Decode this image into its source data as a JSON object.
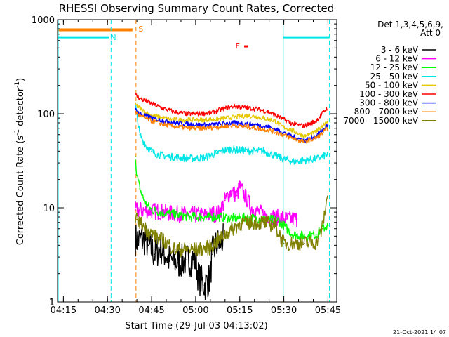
{
  "chart_data": {
    "type": "line",
    "title": "RHESSI Observing Summary Count Rates, Corrected",
    "xlabel": "Start Time (29-Jul-03 04:13:02)",
    "ylabel_main": "Corrected Count Rate (s",
    "ylabel_exp1": "-1",
    "ylabel_mid": " detector",
    "ylabel_exp2": "-1",
    "ylabel_end": ")",
    "y_scale": "log",
    "ylim": [
      1,
      1000
    ],
    "xlim_min": [
      0,
      95
    ],
    "x_ticks": [
      {
        "label": "04:15",
        "min": 2
      },
      {
        "label": "04:30",
        "min": 17
      },
      {
        "label": "04:45",
        "min": 32
      },
      {
        "label": "05:00",
        "min": 47
      },
      {
        "label": "05:15",
        "min": 62
      },
      {
        "label": "05:30",
        "min": 77
      },
      {
        "label": "05:45",
        "min": 92
      }
    ],
    "y_ticks": [
      {
        "label": "1",
        "value": 1
      },
      {
        "label": "10",
        "value": 10
      },
      {
        "label": "100",
        "value": 100
      },
      {
        "label": "1000",
        "value": 1000
      }
    ],
    "legend": {
      "header1": "Det 1,3,4,5,6,9,",
      "header2": "Att 0",
      "placement": "right"
    },
    "annotations": [
      {
        "label": "N",
        "color": "#00e5e5",
        "min": 18,
        "value": 650
      },
      {
        "label": "S",
        "color": "#ff8000",
        "min": 27.5,
        "value": 800
      },
      {
        "label": "F",
        "color": "#ff0000",
        "min": 60.5,
        "value": 530
      }
    ],
    "footer_date": "21-Oct-2021 14:07",
    "spans": [
      {
        "name": "night-1",
        "color": "#00e5e5",
        "start_min": 0,
        "end_min": 17.5,
        "value": 650
      },
      {
        "name": "saa",
        "color": "#ff8000",
        "start_min": 0,
        "end_min": 25.5,
        "value": 780
      },
      {
        "name": "flare",
        "color": "#ff0000",
        "start_min": 63.5,
        "end_min": 64.8,
        "value": 520
      },
      {
        "name": "night-2",
        "color": "#00e5e5",
        "start_min": 76.8,
        "end_min": 92.5,
        "value": 650
      }
    ],
    "series": [
      {
        "name": "3 - 6 keV",
        "label": "3 - 6 keV",
        "color": "#000000",
        "x": [
          26.5,
          30,
          31,
          33,
          35,
          38,
          41,
          44,
          47,
          48,
          50,
          52,
          52.5,
          54,
          56.5
        ],
        "values": [
          4.6,
          4.6,
          4,
          3.2,
          3.8,
          2.8,
          2.6,
          2.8,
          2.8,
          1.8,
          1.5,
          1.8,
          3.2,
          4.0,
          4.6
        ]
      },
      {
        "name": "6 - 12 keV",
        "label": "6 - 12 keV",
        "color": "#ff00ff",
        "x": [
          26.5,
          32,
          38,
          44,
          50,
          55,
          57,
          59,
          61,
          62,
          64,
          66,
          70,
          74,
          76.8,
          78,
          80,
          81.5
        ],
        "values": [
          9.5,
          9.3,
          8.8,
          8.5,
          8.3,
          8.8,
          12,
          15,
          13.5,
          17,
          13,
          10,
          8.5,
          8,
          7.8,
          7.6,
          7.6,
          7.6
        ]
      },
      {
        "name": "12 - 25 keV",
        "label": "12 - 25 keV",
        "color": "#00ff00",
        "x": [
          26.5,
          27,
          28,
          29,
          30,
          32,
          35,
          40,
          45,
          50,
          55,
          60,
          65,
          70,
          75,
          77,
          80,
          85,
          88,
          90,
          91.5,
          92
        ],
        "values": [
          35,
          22,
          16,
          13,
          11,
          9.5,
          9,
          8.5,
          8,
          8,
          8,
          7.8,
          7.8,
          7.6,
          7.4,
          6.5,
          5.2,
          5,
          5.2,
          6,
          6.3,
          6.5
        ]
      },
      {
        "name": "25 - 50 keV",
        "label": "25 - 50 keV",
        "color": "#00e5e5",
        "x": [
          26.5,
          28,
          30,
          32,
          34,
          38,
          42,
          46,
          50,
          54,
          58,
          62,
          66,
          70,
          74,
          77,
          80,
          84,
          88,
          92
        ],
        "values": [
          125,
          60,
          46,
          40,
          37,
          35,
          34,
          33.5,
          34,
          38,
          42,
          41,
          40,
          40,
          36,
          33,
          31,
          32,
          33,
          37
        ]
      },
      {
        "name": "50 - 100 keV",
        "label": "50 - 100 keV",
        "color": "#e6c800",
        "x": [
          26.5,
          28,
          30,
          32,
          36,
          40,
          45,
          50,
          55,
          60,
          65,
          70,
          74,
          76,
          80,
          84,
          88,
          92
        ],
        "values": [
          125,
          115,
          102,
          96,
          90,
          86,
          86,
          86,
          88,
          92,
          96,
          90,
          84,
          74,
          66,
          58,
          64,
          86
        ]
      },
      {
        "name": "100 - 300 keV",
        "label": "100 - 300 keV",
        "color": "#ff0000",
        "x": [
          26.5,
          28,
          32,
          36,
          40,
          44,
          48,
          52,
          56,
          60,
          64,
          68,
          72,
          76,
          80,
          84,
          88,
          92
        ],
        "values": [
          160,
          145,
          128,
          114,
          104,
          100,
          100,
          102,
          112,
          120,
          116,
          112,
          104,
          90,
          78,
          74,
          84,
          118
        ]
      },
      {
        "name": "300 - 800 keV",
        "label": "300 - 800 keV",
        "color": "#0000ff",
        "x": [
          26.5,
          28,
          32,
          36,
          40,
          44,
          48,
          52,
          56,
          60,
          64,
          68,
          72,
          76,
          80,
          84,
          88,
          92
        ],
        "values": [
          110,
          100,
          90,
          84,
          80,
          78,
          76,
          76,
          78,
          80,
          78,
          76,
          72,
          65,
          57,
          52,
          58,
          76
        ]
      },
      {
        "name": "800 - 7000 keV",
        "label": "800 - 7000 keV",
        "color": "#ff8000",
        "x": [
          26.5,
          28,
          32,
          36,
          40,
          44,
          48,
          52,
          56,
          60,
          64,
          68,
          72,
          76,
          80,
          84,
          88,
          92
        ],
        "values": [
          105,
          95,
          84,
          77,
          73,
          71,
          70,
          71,
          73,
          75,
          73,
          70,
          67,
          61,
          55,
          50,
          55,
          70
        ]
      },
      {
        "name": "7000 - 15000 keV",
        "label": "7000 - 15000 keV",
        "color": "#808000",
        "x": [
          26.5,
          27,
          29,
          31,
          33,
          36,
          40,
          44,
          48,
          52,
          55,
          58,
          62,
          66,
          70,
          74,
          77,
          80,
          84,
          88,
          90,
          92
        ],
        "values": [
          8.2,
          7.5,
          6.5,
          5.5,
          5.0,
          4.5,
          3.6,
          3.6,
          3.6,
          3.8,
          4.6,
          5.5,
          6.8,
          7.0,
          7.0,
          6.5,
          4.2,
          4.2,
          4.2,
          4.3,
          6,
          14
        ]
      }
    ]
  }
}
